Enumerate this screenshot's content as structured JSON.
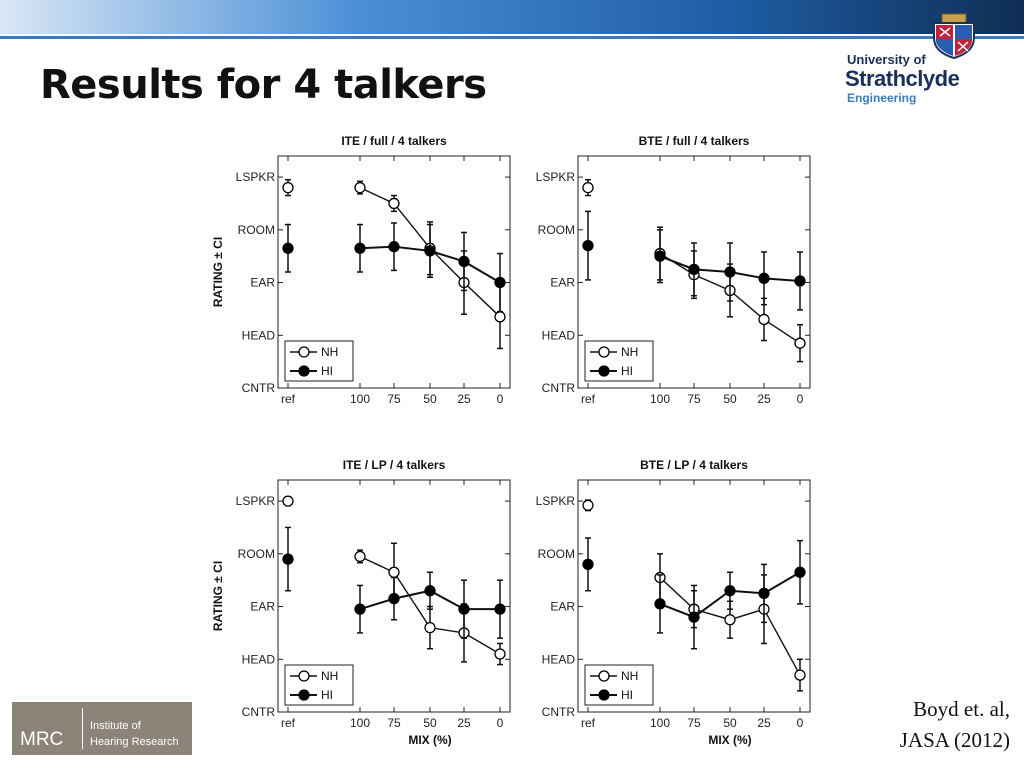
{
  "slide": {
    "title": "Results for 4 talkers",
    "citation_line1": "Boyd et. al,",
    "citation_line2": "JASA (2012)"
  },
  "logo": {
    "university_of": "University of",
    "name": "Strathclyde",
    "faculty": "Engineering"
  },
  "mrc_logo": {
    "mrc": "MRC",
    "line1": "Institute of",
    "line2": "Hearing Research"
  },
  "colors": {
    "topbar_dark": "#0f2e55",
    "topbar_accent": "#3b78c2",
    "logo_navy": "#1a2f5a",
    "logo_blue": "#3a7cc0",
    "mrc_box": "#8c8478"
  },
  "chart_data": [
    {
      "type": "line",
      "title": "ITE / full / 4 talkers",
      "ylabel": "RATING ± CI",
      "xlabel": "",
      "categories": [
        "ref",
        "100",
        "75",
        "50",
        "25",
        "0"
      ],
      "yticks": [
        "CNTR",
        "HEAD",
        "EAR",
        "ROOM",
        "LSPKR"
      ],
      "ylim": [
        0,
        4.4
      ],
      "legend": "bottom-left",
      "series": [
        {
          "name": "NH",
          "marker": "open",
          "values": [
            3.8,
            3.8,
            3.5,
            2.65,
            2.0,
            1.35
          ],
          "ci": [
            0.15,
            0.12,
            0.15,
            0.5,
            0.6,
            0.6
          ]
        },
        {
          "name": "HI",
          "marker": "filled",
          "values": [
            2.65,
            2.65,
            2.68,
            2.6,
            2.4,
            2.0
          ],
          "ci": [
            0.45,
            0.45,
            0.45,
            0.5,
            0.55,
            0.55
          ]
        }
      ]
    },
    {
      "type": "line",
      "title": "BTE / full / 4 talkers",
      "ylabel": "",
      "xlabel": "",
      "categories": [
        "ref",
        "100",
        "75",
        "50",
        "25",
        "0"
      ],
      "yticks": [
        "CNTR",
        "HEAD",
        "EAR",
        "ROOM",
        "LSPKR"
      ],
      "ylim": [
        0,
        4.4
      ],
      "legend": "bottom-left",
      "series": [
        {
          "name": "NH",
          "marker": "open",
          "values": [
            3.8,
            2.55,
            2.15,
            1.85,
            1.3,
            0.85
          ],
          "ci": [
            0.15,
            0.5,
            0.45,
            0.5,
            0.4,
            0.35
          ]
        },
        {
          "name": "HI",
          "marker": "filled",
          "values": [
            2.7,
            2.5,
            2.25,
            2.2,
            2.08,
            2.03
          ],
          "ci": [
            0.65,
            0.5,
            0.5,
            0.55,
            0.5,
            0.55
          ]
        }
      ]
    },
    {
      "type": "line",
      "title": "ITE / LP / 4 talkers",
      "ylabel": "RATING ± CI",
      "xlabel": "MIX (%)",
      "categories": [
        "ref",
        "100",
        "75",
        "50",
        "25",
        "0"
      ],
      "yticks": [
        "CNTR",
        "HEAD",
        "EAR",
        "ROOM",
        "LSPKR"
      ],
      "ylim": [
        0,
        4.4
      ],
      "legend": "bottom-left",
      "series": [
        {
          "name": "NH",
          "marker": "open",
          "values": [
            4.0,
            2.95,
            2.65,
            1.6,
            1.5,
            1.1
          ],
          "ci": [
            0.08,
            0.12,
            0.55,
            0.4,
            0.55,
            0.2
          ]
        },
        {
          "name": "HI",
          "marker": "filled",
          "values": [
            2.9,
            1.95,
            2.15,
            2.3,
            1.95,
            1.95
          ],
          "ci": [
            0.6,
            0.45,
            0.4,
            0.35,
            0.55,
            0.55
          ]
        }
      ]
    },
    {
      "type": "line",
      "title": "BTE / LP / 4 talkers",
      "ylabel": "",
      "xlabel": "MIX (%)",
      "categories": [
        "ref",
        "100",
        "75",
        "50",
        "25",
        "0"
      ],
      "yticks": [
        "CNTR",
        "HEAD",
        "EAR",
        "ROOM",
        "LSPKR"
      ],
      "ylim": [
        0,
        4.4
      ],
      "legend": "bottom-left",
      "series": [
        {
          "name": "NH",
          "marker": "open",
          "values": [
            3.92,
            2.55,
            1.95,
            1.75,
            1.95,
            0.7
          ],
          "ci": [
            0.1,
            0.45,
            0.35,
            0.35,
            0.65,
            0.3
          ]
        },
        {
          "name": "HI",
          "marker": "filled",
          "values": [
            2.8,
            2.05,
            1.8,
            2.3,
            2.25,
            2.65
          ],
          "ci": [
            0.5,
            0.55,
            0.6,
            0.35,
            0.55,
            0.6
          ]
        }
      ]
    }
  ]
}
